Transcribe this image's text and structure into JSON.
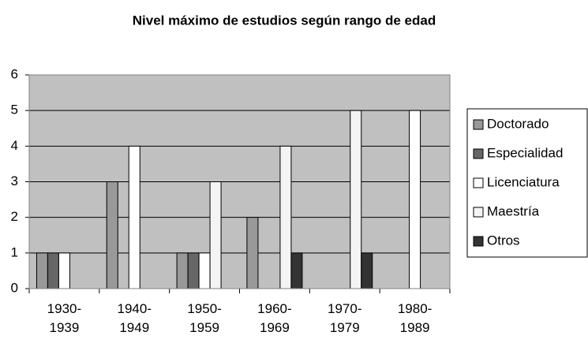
{
  "chart_data": {
    "type": "bar",
    "title": "Nivel máximo de estudios según rango de edad",
    "categories": [
      "1930-1939",
      "1940-1949",
      "1950-1959",
      "1960-1969",
      "1970-1979",
      "1980-1989"
    ],
    "series": [
      {
        "name": "Doctorado",
        "color": "#999999",
        "values": [
          1,
          3,
          1,
          2,
          0,
          0
        ]
      },
      {
        "name": "Especialidad",
        "color": "#666666",
        "values": [
          1,
          0,
          1,
          0,
          0,
          0
        ]
      },
      {
        "name": "Licenciatura",
        "color": "#ffffff",
        "values": [
          1,
          4,
          1,
          0,
          0,
          5
        ]
      },
      {
        "name": "Maestría",
        "color": "#f4f4f4",
        "values": [
          0,
          0,
          3,
          4,
          5,
          0
        ]
      },
      {
        "name": "Otros",
        "color": "#333333",
        "values": [
          0,
          0,
          0,
          1,
          1,
          0
        ]
      }
    ],
    "ylim": [
      0,
      6
    ],
    "yticks": [
      0,
      1,
      2,
      3,
      4,
      5,
      6
    ],
    "grid": true,
    "legend": "right"
  }
}
